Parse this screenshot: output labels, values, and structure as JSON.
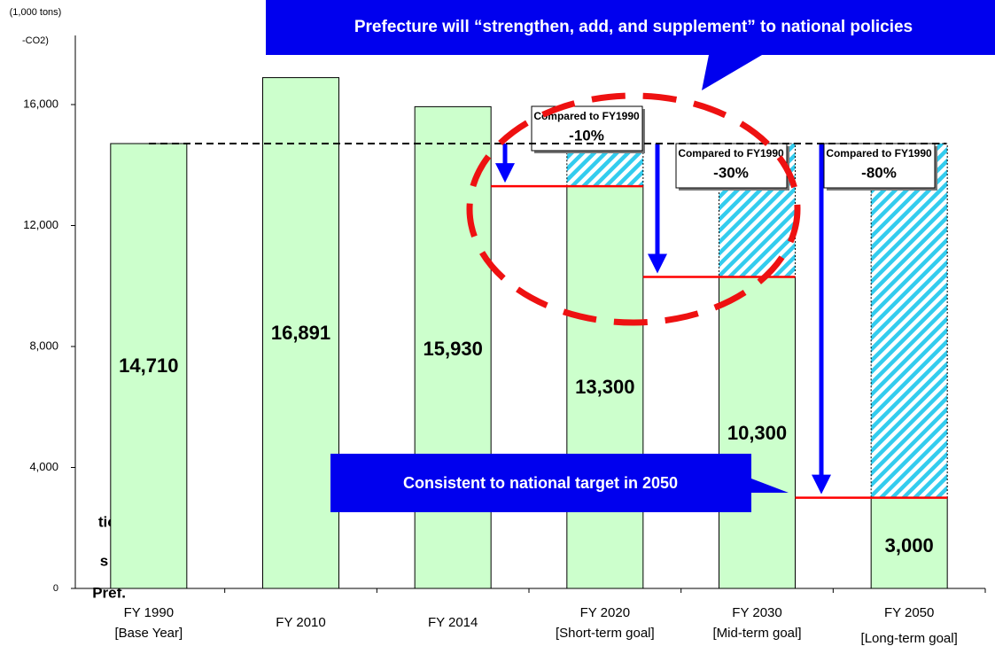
{
  "chart_data": {
    "type": "bar",
    "y_axis_label": "(1,000 tons)",
    "y_axis_unit": "-CO2)",
    "categories": [
      "FY 1990",
      "FY 2010",
      "FY 2014",
      "FY 2020",
      "FY 2030",
      "FY 2050"
    ],
    "category_notes": [
      "[Base Year]",
      null,
      null,
      "[Short-term goal]",
      "[Mid-term goal]",
      "[Long-term goal]"
    ],
    "values": [
      14710,
      16891,
      15930,
      13300,
      10300,
      3000
    ],
    "value_labels": [
      "14,710",
      "16,891",
      "15,930",
      "13,300",
      "10,300",
      "3,000"
    ],
    "color": "#ccffcc",
    "reduction_color": "#33ccee",
    "target_line_color": "#ff0000",
    "arrow_color": "#0000ff",
    "comparison_label": "Compared to FY1990",
    "reductions": [
      null,
      null,
      null,
      "-10%",
      "-30%",
      "-80%"
    ],
    "ylim": [
      0,
      16000
    ],
    "yticks": [
      0,
      {
        "value": 4000,
        "label": "4,000"
      },
      {
        "value": 8000,
        "label": "8,000"
      },
      {
        "value": 12000,
        "label": "12,000"
      },
      {
        "value": 16000,
        "label": "16,000"
      }
    ],
    "annotations": [
      "Prefecture will “strengthen, add, and supplement” to national policies",
      "Consistent to national target in 2050"
    ],
    "side_text": [
      "tion",
      "s in",
      "Pref."
    ]
  }
}
